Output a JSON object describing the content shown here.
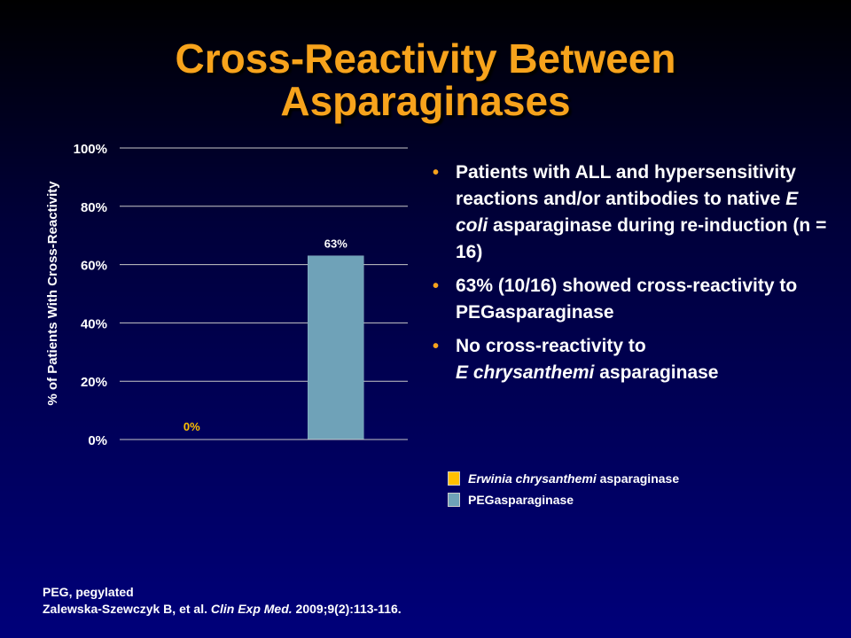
{
  "title": {
    "line1": "Cross-Reactivity Between",
    "line2": "Asparaginases"
  },
  "colors": {
    "title": "#f7a31c",
    "erwinia": "#ffc000",
    "peg": "#6fa2b8",
    "bullet": "#f7a31c",
    "grid": "#c8c8c8"
  },
  "chart_data": {
    "type": "bar",
    "ylabel": "% of Patients With Cross-Reactivity",
    "ylim": [
      0,
      100
    ],
    "yticks": [
      0,
      20,
      40,
      60,
      80,
      100
    ],
    "ytick_labels": [
      "0%",
      "20%",
      "40%",
      "60%",
      "80%",
      "100%"
    ],
    "grid": true,
    "legend_position": "bottom-right",
    "series": [
      {
        "name": "Erwinia chrysanthemi asparaginase",
        "value": 0,
        "label": "0%",
        "color": "#ffc000"
      },
      {
        "name": "PEGasparaginase",
        "value": 63,
        "label": "63%",
        "color": "#6fa2b8"
      }
    ]
  },
  "bullets": {
    "b1": {
      "before": "Patients with ALL and hypersensitivity reactions and/or antibodies to native ",
      "italic": "E coli",
      "after": " asparaginase during re-induction (n = 16)"
    },
    "b2": {
      "text": "63%  (10/16) showed cross-reactivity to PEGasparaginase"
    },
    "b3": {
      "before": "No cross-reactivity to",
      "italic": "E  chrysanthemi",
      "after": " asparaginase"
    }
  },
  "legend": {
    "erwinia": {
      "italic": "Erwinia chrysanthemi",
      "rest": " asparaginase"
    },
    "peg": {
      "text": "PEGasparaginase"
    }
  },
  "footnote": {
    "line1": "PEG, pegylated",
    "line2_before": "Zalewska-Szewczyk B, et al.  ",
    "line2_italic": "Clin Exp Med.",
    "line2_after": " 2009;9(2):113-116."
  }
}
